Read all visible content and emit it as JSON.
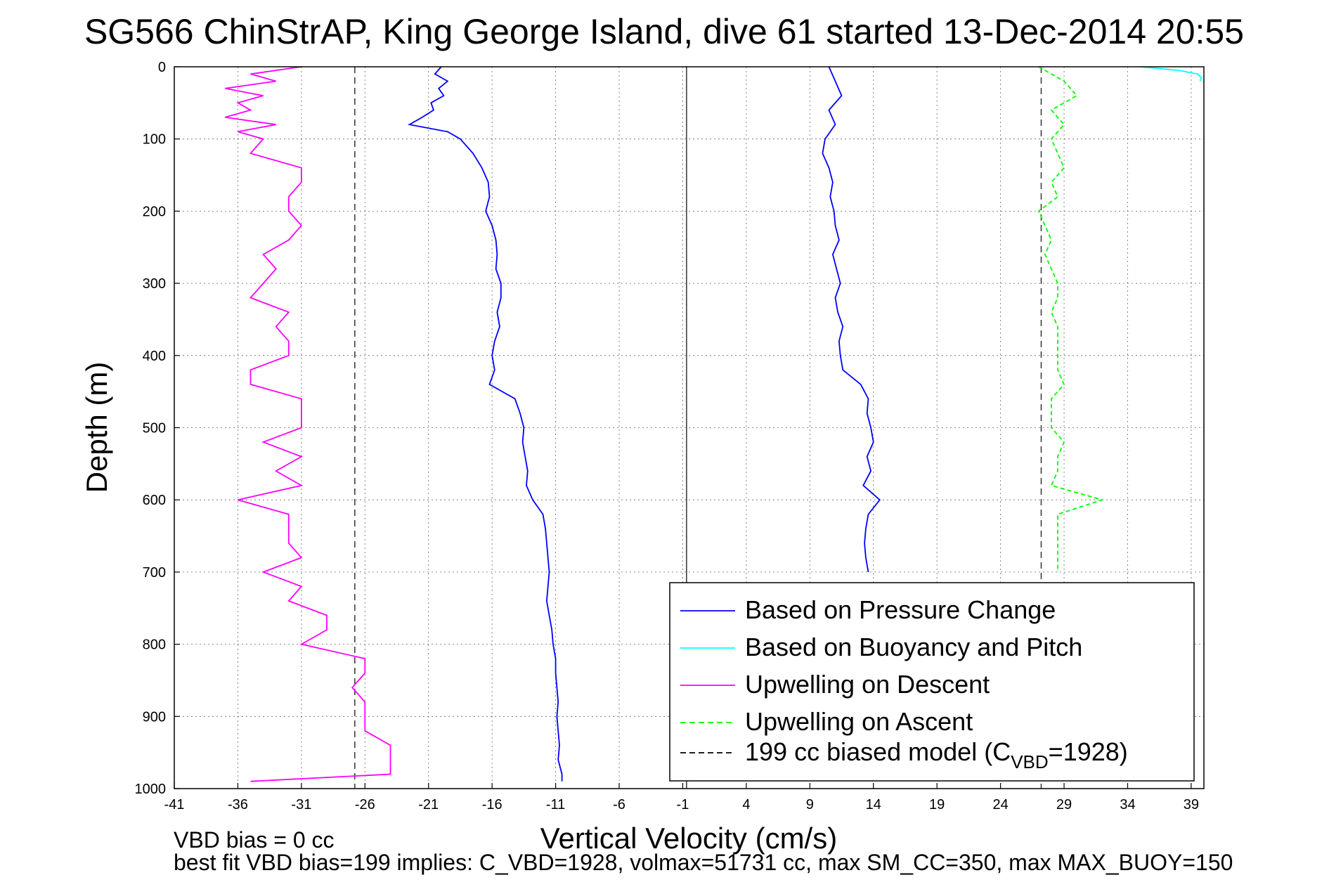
{
  "chart_data": {
    "type": "line",
    "title": "SG566 ChinStrAP, King George Island, dive 61 started 13-Dec-2014 20:55",
    "xlabel": "Vertical Velocity (cm/s)",
    "ylabel": "Depth (m)",
    "xlim": [
      -41,
      40
    ],
    "ylim": [
      1000,
      0
    ],
    "y_reversed": true,
    "grid": "dotted",
    "xticks": [
      -41,
      -36,
      -31,
      -26,
      -21,
      -16,
      -11,
      -6,
      -1,
      4,
      9,
      14,
      19,
      24,
      29,
      34,
      39
    ],
    "yticks": [
      0,
      100,
      200,
      300,
      400,
      500,
      600,
      700,
      800,
      900,
      1000
    ],
    "zero_line_x": -0.7,
    "model_lines_x": [
      -26.8,
      27.2
    ],
    "legend_position": "bottom-right",
    "series": [
      {
        "name": "Based on Pressure Change",
        "color": "#0000ff",
        "style": "solid",
        "depth": [
          0,
          10,
          20,
          30,
          40,
          50,
          60,
          70,
          80,
          90,
          100,
          120,
          140,
          160,
          180,
          200,
          220,
          240,
          260,
          280,
          300,
          320,
          340,
          360,
          380,
          400,
          420,
          440,
          460,
          480,
          500,
          520,
          540,
          560,
          580,
          600,
          620,
          640,
          660,
          680,
          700,
          720,
          740,
          760,
          780,
          800,
          820,
          840,
          860,
          880,
          900,
          920,
          940,
          960,
          980,
          990
        ],
        "velocity": [
          -20,
          -20.5,
          -19.5,
          -20.2,
          -19.8,
          -20.8,
          -20.6,
          -21.5,
          -22.5,
          -19.5,
          -18.5,
          -17.5,
          -16.8,
          -16.3,
          -16.2,
          -16.5,
          -16.0,
          -15.7,
          -15.6,
          -15.7,
          -15.3,
          -15.3,
          -15.6,
          -15.4,
          -15.8,
          -16.0,
          -15.8,
          -16.2,
          -14.2,
          -13.8,
          -13.5,
          -13.6,
          -13.4,
          -13.2,
          -13.3,
          -12.8,
          -12.0,
          -11.8,
          -11.7,
          -11.6,
          -11.5,
          -11.6,
          -11.7,
          -11.5,
          -11.3,
          -11.2,
          -11.0,
          -11.0,
          -10.9,
          -10.8,
          -10.9,
          -10.8,
          -10.7,
          -10.8,
          -10.5,
          -10.5
        ]
      },
      {
        "name": "Based on Pressure Change (ascent)",
        "color": "#0000ff",
        "style": "solid",
        "depth": [
          0,
          20,
          40,
          60,
          80,
          100,
          120,
          140,
          160,
          180,
          200,
          220,
          240,
          260,
          280,
          300,
          320,
          340,
          360,
          380,
          400,
          420,
          440,
          460,
          480,
          500,
          520,
          540,
          560,
          580,
          600,
          620,
          640,
          660,
          680,
          700
        ],
        "velocity": [
          10.5,
          11.0,
          11.5,
          10.5,
          11.0,
          10.2,
          10.0,
          10.5,
          10.8,
          10.6,
          10.9,
          11.0,
          11.3,
          10.8,
          11.1,
          11.4,
          11.0,
          11.2,
          11.6,
          11.3,
          11.4,
          11.6,
          13.0,
          13.6,
          13.5,
          13.8,
          14.0,
          13.5,
          13.8,
          13.2,
          14.5,
          13.6,
          13.4,
          13.3,
          13.4,
          13.6
        ]
      },
      {
        "name": "Based on Buoyancy and Pitch",
        "color": "#00ffff",
        "style": "solid",
        "depth": [
          0,
          5,
          10,
          15,
          20
        ],
        "velocity": [
          35,
          38,
          39.5,
          39.8,
          39.7
        ]
      },
      {
        "name": "Upwelling on Descent",
        "color": "#ff00ff",
        "style": "solid",
        "depth": [
          0,
          10,
          20,
          30,
          40,
          50,
          60,
          70,
          80,
          90,
          100,
          120,
          140,
          160,
          180,
          200,
          220,
          240,
          260,
          280,
          300,
          320,
          340,
          360,
          380,
          400,
          420,
          440,
          460,
          480,
          500,
          520,
          540,
          560,
          580,
          600,
          620,
          640,
          660,
          680,
          700,
          720,
          740,
          760,
          780,
          800,
          820,
          840,
          860,
          880,
          900,
          920,
          940,
          960,
          980,
          990
        ],
        "velocity": [
          -31,
          -35,
          -33,
          -37,
          -34,
          -36,
          -35,
          -37,
          -33,
          -36,
          -34,
          -35,
          -31,
          -31,
          -32,
          -32,
          -31,
          -32,
          -34,
          -33,
          -34,
          -35,
          -32,
          -33,
          -32,
          -32,
          -35,
          -35,
          -31,
          -31,
          -31,
          -34,
          -31,
          -33,
          -31,
          -36,
          -32,
          -32,
          -32,
          -31,
          -34,
          -31,
          -32,
          -29,
          -29,
          -31,
          -26,
          -26,
          -27,
          -26,
          -26,
          -26,
          -24,
          -24,
          -24,
          -35
        ]
      },
      {
        "name": "Upwelling on Ascent",
        "color": "#00ff00",
        "style": "dashed",
        "depth": [
          0,
          20,
          40,
          60,
          80,
          100,
          120,
          140,
          160,
          180,
          200,
          220,
          240,
          260,
          280,
          300,
          320,
          340,
          360,
          380,
          400,
          420,
          440,
          460,
          480,
          500,
          520,
          540,
          560,
          580,
          600,
          620,
          640,
          660,
          680,
          700
        ],
        "velocity": [
          27,
          29,
          30,
          28,
          29,
          28,
          28.5,
          29,
          28,
          28.5,
          27,
          27.5,
          28,
          27.5,
          28,
          28.5,
          28.5,
          28,
          28.5,
          28.5,
          28.5,
          28.5,
          29,
          28,
          28,
          28,
          29,
          28.5,
          28.5,
          28,
          32,
          28.5,
          28.5,
          28.5,
          28.5,
          28.5
        ]
      },
      {
        "name": "199 cc biased model (C_VBD=1928)",
        "color": "#000000",
        "style": "dashed",
        "depth": [
          0,
          1000
        ],
        "velocity": [
          -26.8,
          -26.8
        ]
      }
    ],
    "legend": [
      {
        "label": "Based on Pressure Change",
        "color": "#0000ff",
        "style": "solid"
      },
      {
        "label": "Based on Buoyancy and Pitch",
        "color": "#00ffff",
        "style": "solid"
      },
      {
        "label": "Upwelling on Descent",
        "color": "#ff00ff",
        "style": "solid"
      },
      {
        "label": "Upwelling on Ascent",
        "color": "#00ff00",
        "style": "dashed"
      },
      {
        "label": "199 cc biased model (C",
        "sub": "VBD",
        "tail": "=1928)",
        "color": "#000000",
        "style": "dashed"
      }
    ],
    "annotations": [
      "VBD bias = 0 cc",
      "best fit VBD bias=199 implies: C_VBD=1928, volmax=51731 cc, max SM_CC=350, max MAX_BUOY=150"
    ]
  }
}
